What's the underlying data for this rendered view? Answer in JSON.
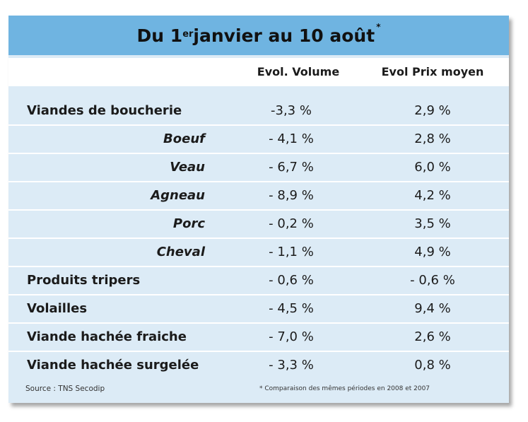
{
  "title": {
    "prefix": "Du 1",
    "superscript": "er",
    "suffix": " janvier au 10 août",
    "asterisk": "*"
  },
  "columns": {
    "volume": "Evol. Volume",
    "prix": "Evol Prix moyen"
  },
  "rows": [
    {
      "label": "Viandes de boucherie",
      "volume": "-3,3 %",
      "prix": "2,9 %",
      "type": "main"
    },
    {
      "label": "Boeuf",
      "volume": "- 4,1 %",
      "prix": "2,8 %",
      "type": "sub"
    },
    {
      "label": "Veau",
      "volume": "- 6,7 %",
      "prix": "6,0 %",
      "type": "sub"
    },
    {
      "label": "Agneau",
      "volume": "- 8,9 %",
      "prix": "4,2 %",
      "type": "sub"
    },
    {
      "label": "Porc",
      "volume": "- 0,2 %",
      "prix": "3,5 %",
      "type": "sub"
    },
    {
      "label": "Cheval",
      "volume": "- 1,1 %",
      "prix": "4,9 %",
      "type": "sub"
    },
    {
      "label": "Produits tripers",
      "volume": "- 0,6 %",
      "prix": "- 0,6 %",
      "type": "main"
    },
    {
      "label": "Volailles",
      "volume": "- 4,5 %",
      "prix": "9,4 %",
      "type": "main"
    },
    {
      "label": "Viande hachée fraiche",
      "volume": "- 7,0 %",
      "prix": "2,6 %",
      "type": "main"
    },
    {
      "label": "Viande hachée surgelée",
      "volume": "- 3,3 %",
      "prix": "0,8 %",
      "type": "main"
    }
  ],
  "source": "Source : TNS Secodip",
  "footnote": "* Comparaison des mêmes périodes en 2008 et 2007"
}
